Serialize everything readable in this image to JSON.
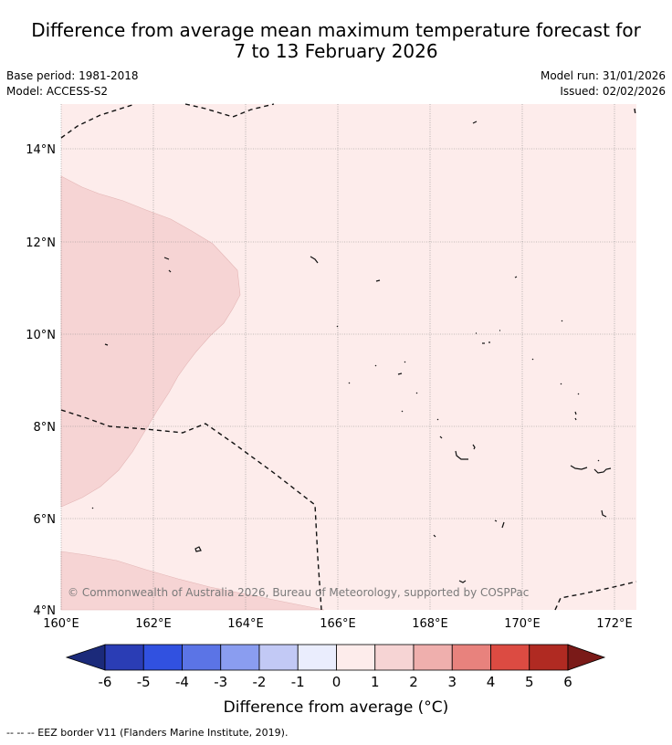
{
  "title_line1": "Difference from average mean maximum temperature forecast for",
  "title_line2": "7 to 13 February 2026",
  "base_period": "Base period: 1981-2018",
  "model": "Model: ACCESS-S2",
  "model_run": "Model run: 31/01/2026",
  "issued": "Issued: 02/02/2026",
  "copyright": "© Commonwealth of Australia 2026, Bureau of Meteorology, supported by COSPPac",
  "footer": "-- -- -- EEZ border V11 (Flanders Marine Institute, 2019).",
  "lat_labels": [
    "14°N",
    "12°N",
    "10°N",
    "8°N",
    "6°N",
    "4°N"
  ],
  "lon_labels": [
    "160°E",
    "162°E",
    "164°E",
    "166°E",
    "168°E",
    "170°E",
    "172°E"
  ],
  "colorbar": {
    "title": "Difference from average (°C)",
    "ticks": [
      "-6",
      "-5",
      "-4",
      "-3",
      "-2",
      "-1",
      "0",
      "1",
      "2",
      "3",
      "4",
      "5",
      "6"
    ],
    "colors": [
      "#1b2a7a",
      "#2a3db5",
      "#3151e0",
      "#5b74e6",
      "#8a9df0",
      "#c2c9f5",
      "#eaedfd",
      "#fdeceb",
      "#f6d4d4",
      "#efafad",
      "#e8827d",
      "#dc4b42",
      "#b02a22",
      "#7a1a18"
    ]
  },
  "map_colors": {
    "ocean_base": "#fdeceb",
    "warm_area": "#f6d4d4"
  }
}
